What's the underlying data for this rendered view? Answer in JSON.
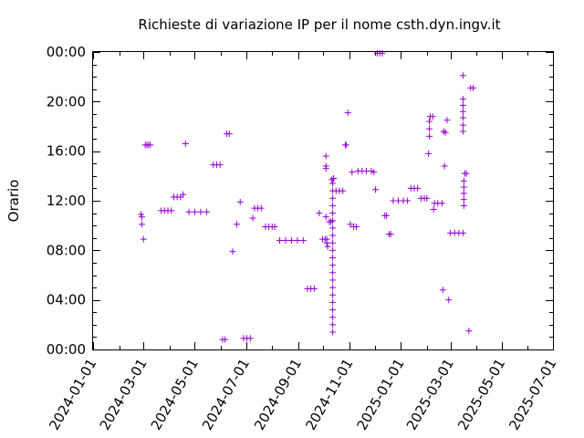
{
  "chart_data": {
    "type": "scatter",
    "title": "Richieste di variazione IP per il nome csth.dyn.ingv.it",
    "xlabel": "",
    "ylabel": "Orario",
    "x_ticks": [
      "2024-01-01",
      "2024-03-01",
      "2024-05-01",
      "2024-07-01",
      "2024-09-01",
      "2024-11-01",
      "2025-01-01",
      "2025-03-01",
      "2025-05-01",
      "2025-07-01"
    ],
    "y_ticks": [
      "00:00",
      "04:00",
      "08:00",
      "12:00",
      "16:00",
      "20:00",
      "00:00"
    ],
    "xlim": [
      "2024-01-01",
      "2025-07-01"
    ],
    "ylim": [
      0,
      24
    ],
    "grid": false,
    "color": "#9400d3",
    "points": [
      {
        "x": "2024-02-27",
        "y": 10.9
      },
      {
        "x": "2024-02-28",
        "y": 10.7
      },
      {
        "x": "2024-02-28",
        "y": 10.1
      },
      {
        "x": "2024-03-01",
        "y": 8.9
      },
      {
        "x": "2024-03-03",
        "y": 16.5
      },
      {
        "x": "2024-03-05",
        "y": 16.5
      },
      {
        "x": "2024-03-07",
        "y": 16.5
      },
      {
        "x": "2024-03-09",
        "y": 16.5
      },
      {
        "x": "2024-03-22",
        "y": 11.2
      },
      {
        "x": "2024-03-26",
        "y": 11.2
      },
      {
        "x": "2024-03-30",
        "y": 11.2
      },
      {
        "x": "2024-04-03",
        "y": 11.2
      },
      {
        "x": "2024-04-06",
        "y": 12.3
      },
      {
        "x": "2024-04-10",
        "y": 12.3
      },
      {
        "x": "2024-04-14",
        "y": 12.3
      },
      {
        "x": "2024-04-17",
        "y": 12.5
      },
      {
        "x": "2024-04-20",
        "y": 16.6
      },
      {
        "x": "2024-04-24",
        "y": 11.1
      },
      {
        "x": "2024-05-01",
        "y": 11.1
      },
      {
        "x": "2024-05-08",
        "y": 11.1
      },
      {
        "x": "2024-05-15",
        "y": 11.1
      },
      {
        "x": "2024-05-23",
        "y": 14.9
      },
      {
        "x": "2024-05-27",
        "y": 14.9
      },
      {
        "x": "2024-05-31",
        "y": 14.9
      },
      {
        "x": "2024-06-03",
        "y": 0.8
      },
      {
        "x": "2024-06-06",
        "y": 0.8
      },
      {
        "x": "2024-06-08",
        "y": 17.4
      },
      {
        "x": "2024-06-11",
        "y": 17.4
      },
      {
        "x": "2024-06-15",
        "y": 7.9
      },
      {
        "x": "2024-06-20",
        "y": 10.1
      },
      {
        "x": "2024-06-24",
        "y": 11.9
      },
      {
        "x": "2024-06-28",
        "y": 0.9
      },
      {
        "x": "2024-07-02",
        "y": 0.9
      },
      {
        "x": "2024-07-06",
        "y": 0.9
      },
      {
        "x": "2024-07-09",
        "y": 10.6
      },
      {
        "x": "2024-07-11",
        "y": 11.4
      },
      {
        "x": "2024-07-15",
        "y": 11.4
      },
      {
        "x": "2024-07-19",
        "y": 11.4
      },
      {
        "x": "2024-07-24",
        "y": 9.9
      },
      {
        "x": "2024-07-28",
        "y": 9.9
      },
      {
        "x": "2024-08-01",
        "y": 9.9
      },
      {
        "x": "2024-08-04",
        "y": 9.9
      },
      {
        "x": "2024-08-10",
        "y": 8.8
      },
      {
        "x": "2024-08-17",
        "y": 8.8
      },
      {
        "x": "2024-08-24",
        "y": 8.8
      },
      {
        "x": "2024-08-31",
        "y": 8.8
      },
      {
        "x": "2024-09-07",
        "y": 8.8
      },
      {
        "x": "2024-09-12",
        "y": 4.9
      },
      {
        "x": "2024-09-16",
        "y": 4.9
      },
      {
        "x": "2024-09-20",
        "y": 4.9
      },
      {
        "x": "2024-09-26",
        "y": 11.0
      },
      {
        "x": "2024-09-30",
        "y": 8.9
      },
      {
        "x": "2024-10-03",
        "y": 8.9
      },
      {
        "x": "2024-10-05",
        "y": 8.9
      },
      {
        "x": "2024-10-04",
        "y": 15.6
      },
      {
        "x": "2024-10-04",
        "y": 14.8
      },
      {
        "x": "2024-10-04",
        "y": 14.6
      },
      {
        "x": "2024-10-04",
        "y": 10.7
      },
      {
        "x": "2024-10-05",
        "y": 8.6
      },
      {
        "x": "2024-10-06",
        "y": 8.3
      },
      {
        "x": "2024-10-08",
        "y": 10.3
      },
      {
        "x": "2024-10-10",
        "y": 10.3
      },
      {
        "x": "2024-10-11",
        "y": 13.7
      },
      {
        "x": "2024-10-13",
        "y": 13.8
      },
      {
        "x": "2024-10-12",
        "y": 13.4
      },
      {
        "x": "2024-10-12",
        "y": 12.8
      },
      {
        "x": "2024-10-12",
        "y": 12.2
      },
      {
        "x": "2024-10-12",
        "y": 11.6
      },
      {
        "x": "2024-10-12",
        "y": 11.0
      },
      {
        "x": "2024-10-12",
        "y": 10.4
      },
      {
        "x": "2024-10-12",
        "y": 9.8
      },
      {
        "x": "2024-10-12",
        "y": 9.2
      },
      {
        "x": "2024-10-12",
        "y": 8.6
      },
      {
        "x": "2024-10-12",
        "y": 8.0
      },
      {
        "x": "2024-10-12",
        "y": 7.4
      },
      {
        "x": "2024-10-12",
        "y": 6.8
      },
      {
        "x": "2024-10-12",
        "y": 6.2
      },
      {
        "x": "2024-10-12",
        "y": 5.6
      },
      {
        "x": "2024-10-12",
        "y": 5.0
      },
      {
        "x": "2024-10-12",
        "y": 4.4
      },
      {
        "x": "2024-10-12",
        "y": 3.8
      },
      {
        "x": "2024-10-12",
        "y": 3.2
      },
      {
        "x": "2024-10-12",
        "y": 2.6
      },
      {
        "x": "2024-10-12",
        "y": 2.0
      },
      {
        "x": "2024-10-12",
        "y": 1.4
      },
      {
        "x": "2024-10-16",
        "y": 12.8
      },
      {
        "x": "2024-10-20",
        "y": 12.8
      },
      {
        "x": "2024-10-24",
        "y": 12.8
      },
      {
        "x": "2024-10-27",
        "y": 16.5
      },
      {
        "x": "2024-10-28",
        "y": 16.5
      },
      {
        "x": "2024-10-30",
        "y": 19.1
      },
      {
        "x": "2024-11-02",
        "y": 10.1
      },
      {
        "x": "2024-11-04",
        "y": 14.3
      },
      {
        "x": "2024-11-06",
        "y": 9.9
      },
      {
        "x": "2024-11-09",
        "y": 9.9
      },
      {
        "x": "2024-11-11",
        "y": 14.4
      },
      {
        "x": "2024-11-16",
        "y": 14.4
      },
      {
        "x": "2024-11-21",
        "y": 14.4
      },
      {
        "x": "2024-11-27",
        "y": 14.4
      },
      {
        "x": "2024-11-30",
        "y": 14.3
      },
      {
        "x": "2024-12-02",
        "y": 12.9
      },
      {
        "x": "2024-12-04",
        "y": 23.9
      },
      {
        "x": "2024-12-07",
        "y": 23.9
      },
      {
        "x": "2024-12-10",
        "y": 23.9
      },
      {
        "x": "2024-12-13",
        "y": 10.8
      },
      {
        "x": "2024-12-15",
        "y": 10.8
      },
      {
        "x": "2024-12-18",
        "y": 9.3
      },
      {
        "x": "2024-12-20",
        "y": 9.3
      },
      {
        "x": "2024-12-23",
        "y": 12.0
      },
      {
        "x": "2024-12-29",
        "y": 12.0
      },
      {
        "x": "2025-01-04",
        "y": 12.0
      },
      {
        "x": "2025-01-09",
        "y": 12.0
      },
      {
        "x": "2025-01-13",
        "y": 13.0
      },
      {
        "x": "2025-01-17",
        "y": 13.0
      },
      {
        "x": "2025-01-21",
        "y": 13.0
      },
      {
        "x": "2025-01-25",
        "y": 12.2
      },
      {
        "x": "2025-01-29",
        "y": 12.2
      },
      {
        "x": "2025-02-01",
        "y": 12.2
      },
      {
        "x": "2025-02-03",
        "y": 15.8
      },
      {
        "x": "2025-02-04",
        "y": 17.2
      },
      {
        "x": "2025-02-04",
        "y": 17.8
      },
      {
        "x": "2025-02-04",
        "y": 18.4
      },
      {
        "x": "2025-02-05",
        "y": 18.8
      },
      {
        "x": "2025-02-08",
        "y": 18.8
      },
      {
        "x": "2025-02-09",
        "y": 11.3
      },
      {
        "x": "2025-02-10",
        "y": 11.8
      },
      {
        "x": "2025-02-14",
        "y": 11.8
      },
      {
        "x": "2025-02-19",
        "y": 11.8
      },
      {
        "x": "2025-02-20",
        "y": 4.8
      },
      {
        "x": "2025-02-22",
        "y": 14.8
      },
      {
        "x": "2025-02-21",
        "y": 17.6
      },
      {
        "x": "2025-02-23",
        "y": 17.5
      },
      {
        "x": "2025-02-25",
        "y": 18.5
      },
      {
        "x": "2025-02-27",
        "y": 4.0
      },
      {
        "x": "2025-03-01",
        "y": 9.4
      },
      {
        "x": "2025-03-06",
        "y": 9.4
      },
      {
        "x": "2025-03-11",
        "y": 9.4
      },
      {
        "x": "2025-03-16",
        "y": 9.4
      },
      {
        "x": "2025-03-16",
        "y": 22.1
      },
      {
        "x": "2025-03-16",
        "y": 20.2
      },
      {
        "x": "2025-03-16",
        "y": 19.7
      },
      {
        "x": "2025-03-16",
        "y": 19.2
      },
      {
        "x": "2025-03-16",
        "y": 18.7
      },
      {
        "x": "2025-03-16",
        "y": 18.1
      },
      {
        "x": "2025-03-16",
        "y": 17.6
      },
      {
        "x": "2025-03-17",
        "y": 13.6
      },
      {
        "x": "2025-03-17",
        "y": 13.1
      },
      {
        "x": "2025-03-17",
        "y": 12.6
      },
      {
        "x": "2025-03-17",
        "y": 12.1
      },
      {
        "x": "2025-03-17",
        "y": 11.6
      },
      {
        "x": "2025-03-18",
        "y": 14.2
      },
      {
        "x": "2025-03-20",
        "y": 14.2
      },
      {
        "x": "2025-03-23",
        "y": 1.5
      },
      {
        "x": "2025-03-25",
        "y": 21.1
      },
      {
        "x": "2025-03-28",
        "y": 21.1
      }
    ]
  }
}
